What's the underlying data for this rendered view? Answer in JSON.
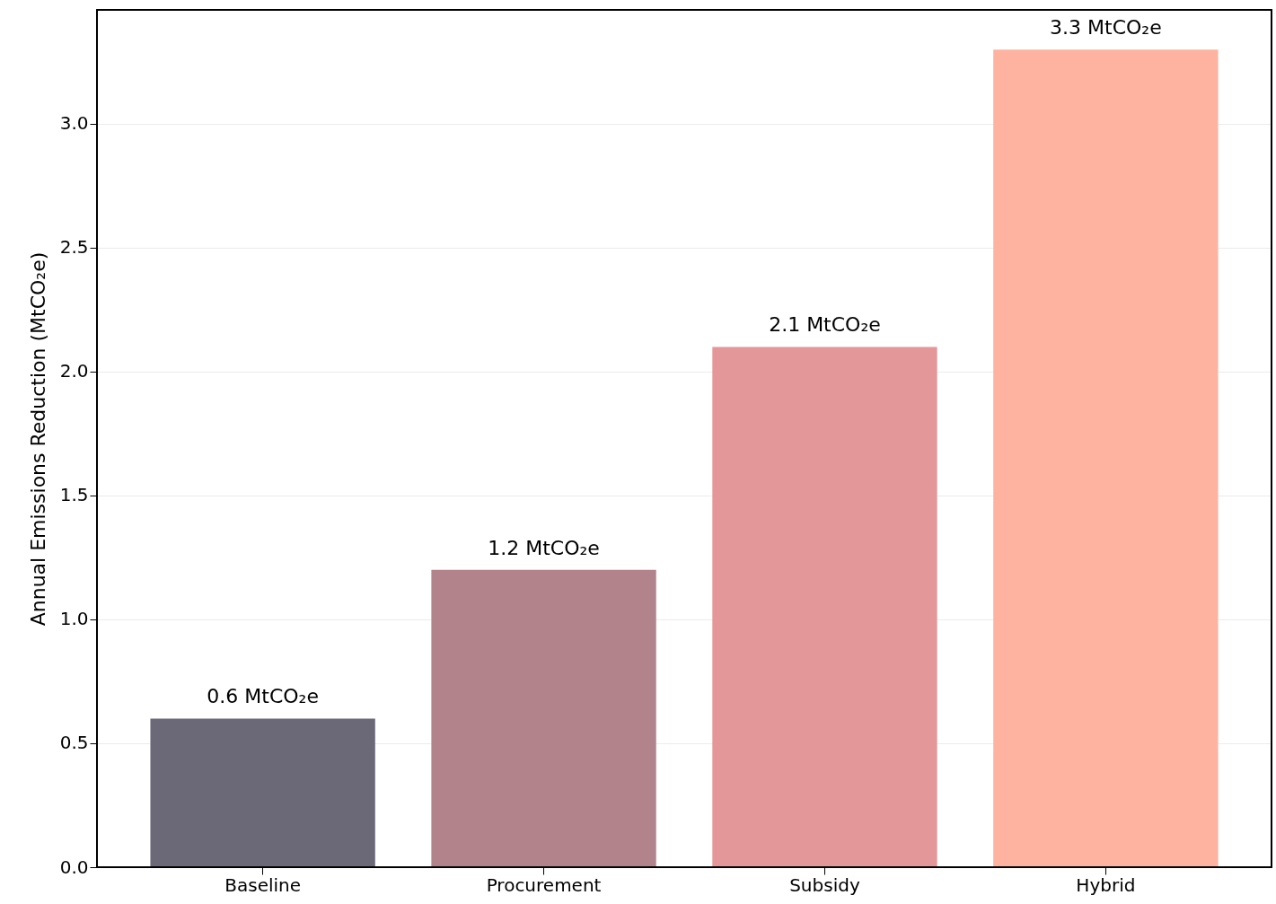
{
  "chart_data": {
    "type": "bar",
    "ylabel": "Annual Emissions Reduction (MtCO₂e)",
    "categories": [
      "Baseline",
      "Procurement",
      "Subsidy",
      "Hybrid"
    ],
    "values": [
      0.6,
      1.2,
      2.1,
      3.3
    ],
    "colors": [
      "#6b6878",
      "#b3838c",
      "#e39799",
      "#fdb3a0"
    ],
    "value_labels": [
      "0.6 MtCO₂e",
      "1.2 MtCO₂e",
      "2.1 MtCO₂e",
      "3.3 MtCO₂e"
    ],
    "ylim": [
      0,
      3.46
    ],
    "yticks": [
      {
        "value": 0,
        "label": "0.0"
      },
      0.5,
      {
        "value": 1,
        "label": "1.0"
      },
      1.5,
      {
        "value": 2,
        "label": "2.0"
      },
      2.5,
      {
        "value": 3,
        "label": "3.0"
      }
    ],
    "grid": "y"
  }
}
